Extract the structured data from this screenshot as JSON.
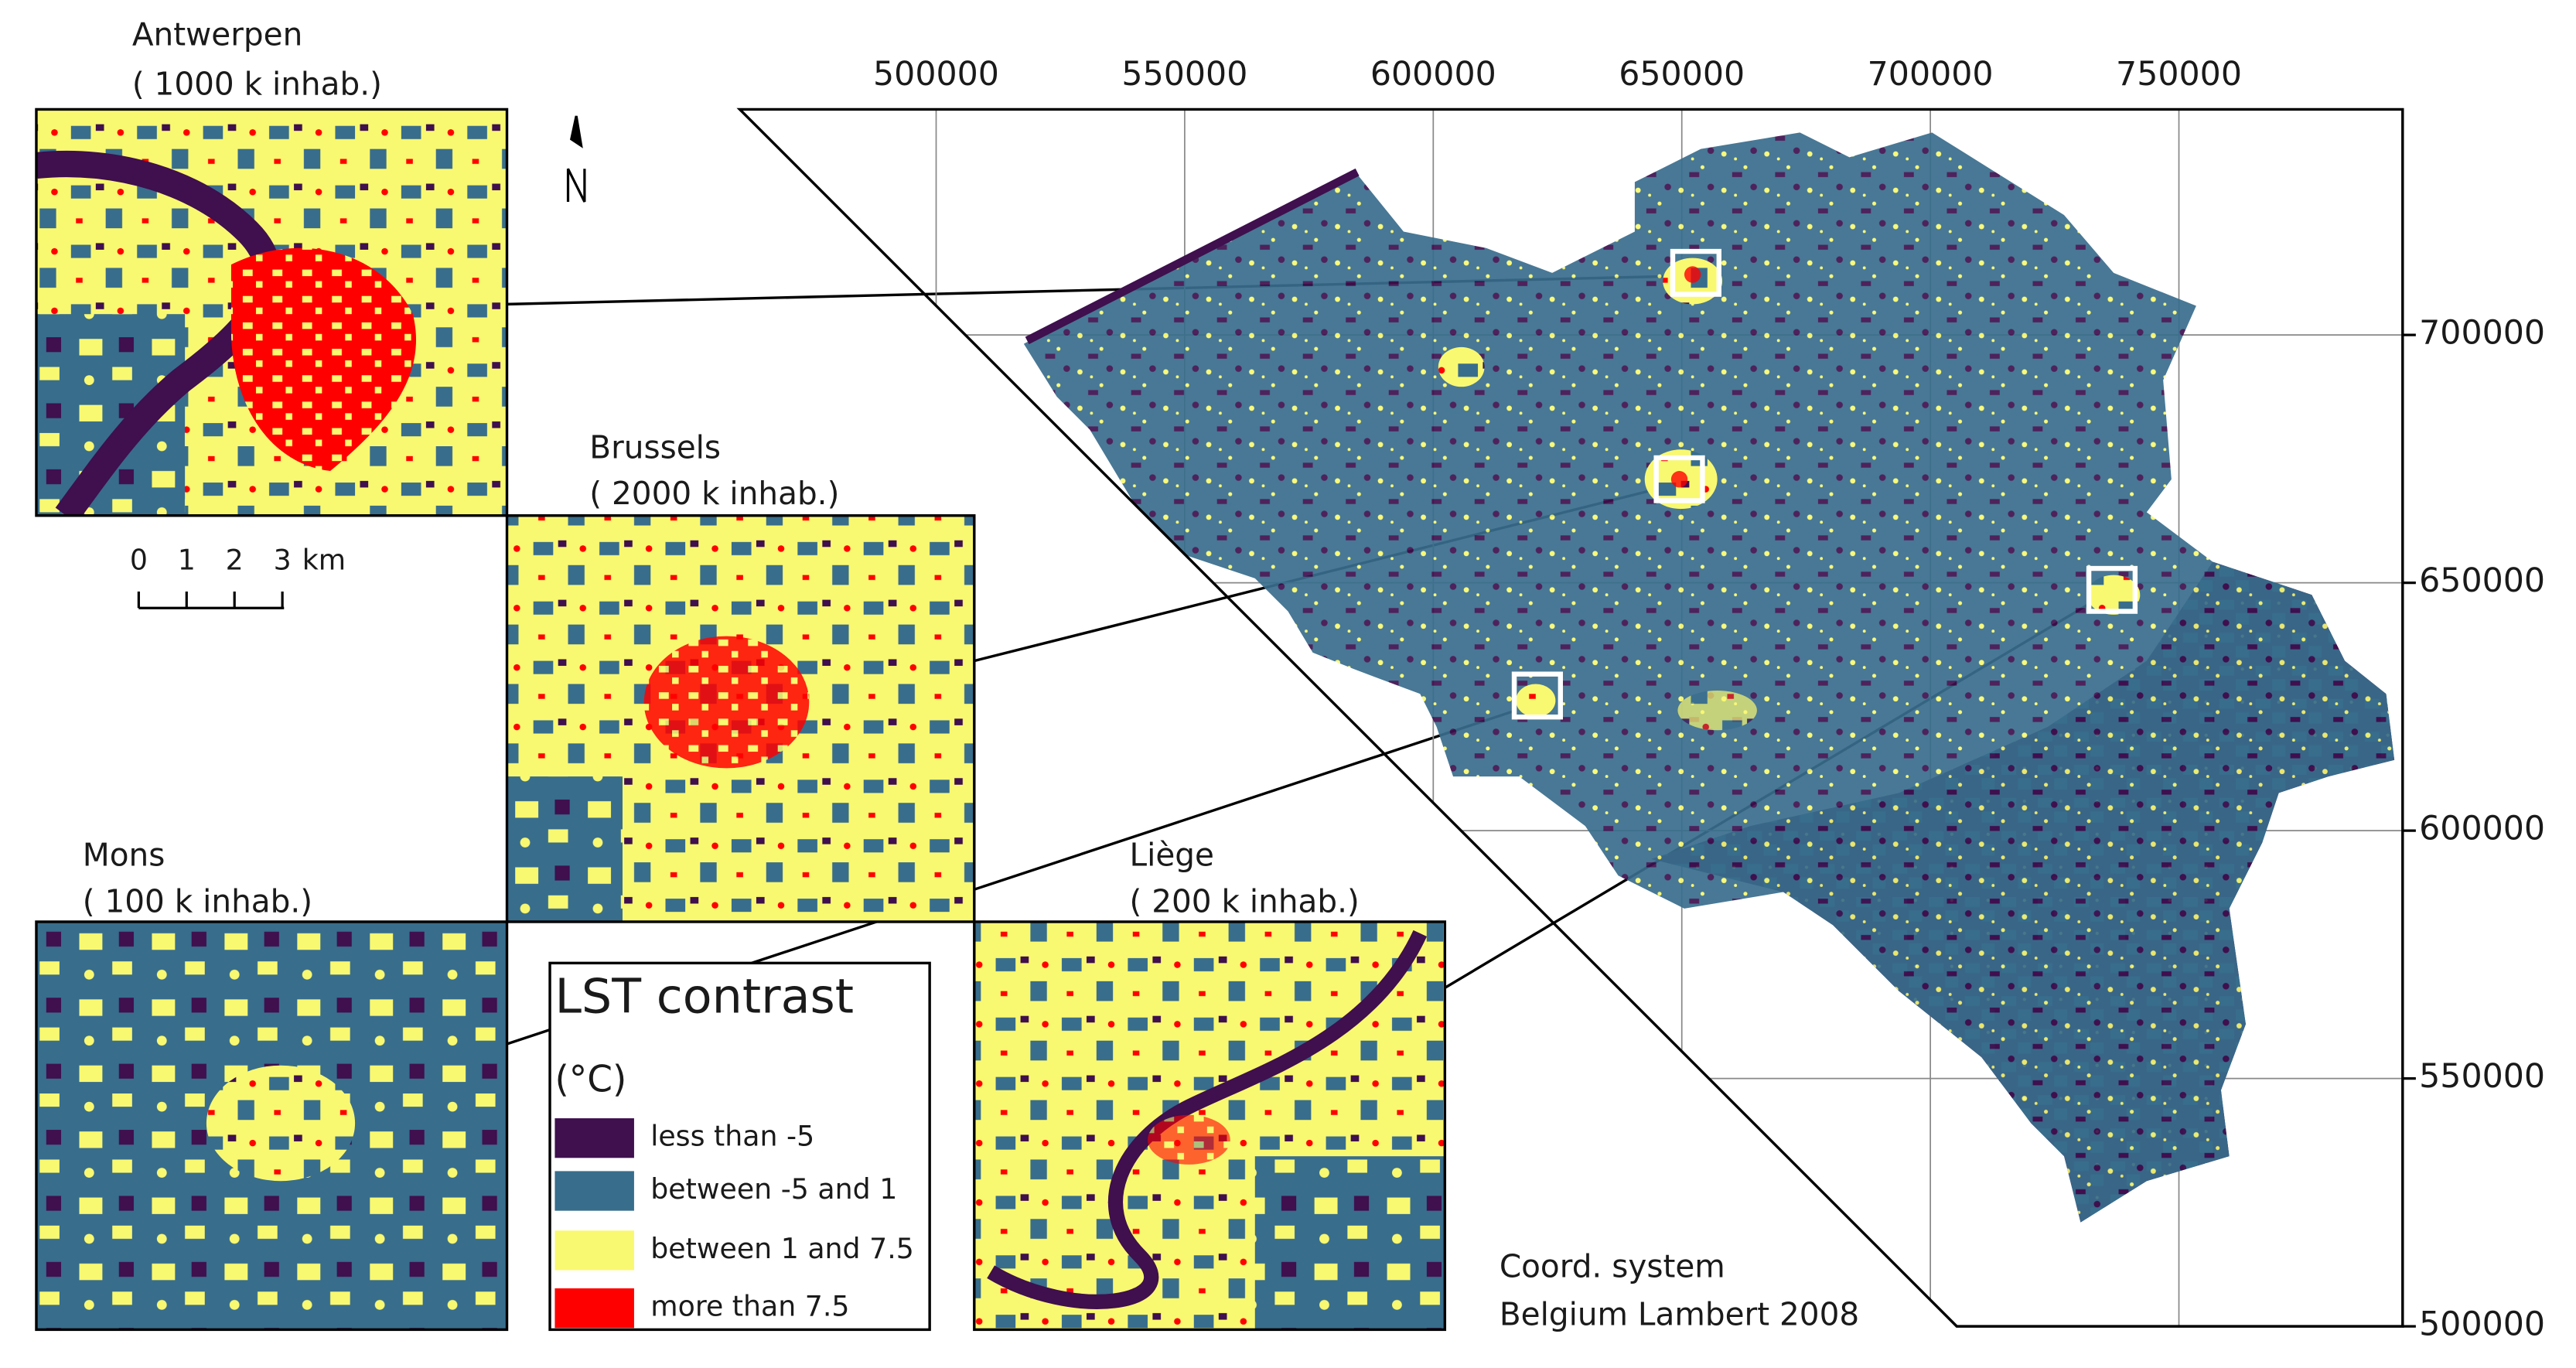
{
  "insets": [
    {
      "name": "Antwerpen",
      "population": "( 1000 k inhab.)"
    },
    {
      "name": "Brussels",
      "population": "( 2000 k inhab.)"
    },
    {
      "name": "Mons",
      "population": "( 100 k inhab.)"
    },
    {
      "name": "Liège",
      "population": "( 200 k inhab.)"
    }
  ],
  "legend": {
    "title": "LST contrast",
    "unit": "(°C)",
    "items": [
      {
        "label": "less than -5",
        "color": "#3f0f4e"
      },
      {
        "label": "between -5 and 1",
        "color": "#386d8c"
      },
      {
        "label": "between 1 and 7.5",
        "color": "#f9f871"
      },
      {
        "label": "more than 7.5",
        "color": "#ff0000"
      }
    ]
  },
  "scale_bar": {
    "labels": [
      "0",
      "1",
      "2",
      "3"
    ],
    "unit": "km"
  },
  "map": {
    "xlim": [
      460500,
      795000
    ],
    "ylim": [
      500000,
      745500
    ],
    "xticks": [
      500000,
      550000,
      600000,
      650000,
      700000,
      750000
    ],
    "yticks": [
      500000,
      550000,
      600000,
      650000,
      700000
    ]
  },
  "coord_system": [
    "Coord. system",
    "Belgium Lambert 2008"
  ]
}
